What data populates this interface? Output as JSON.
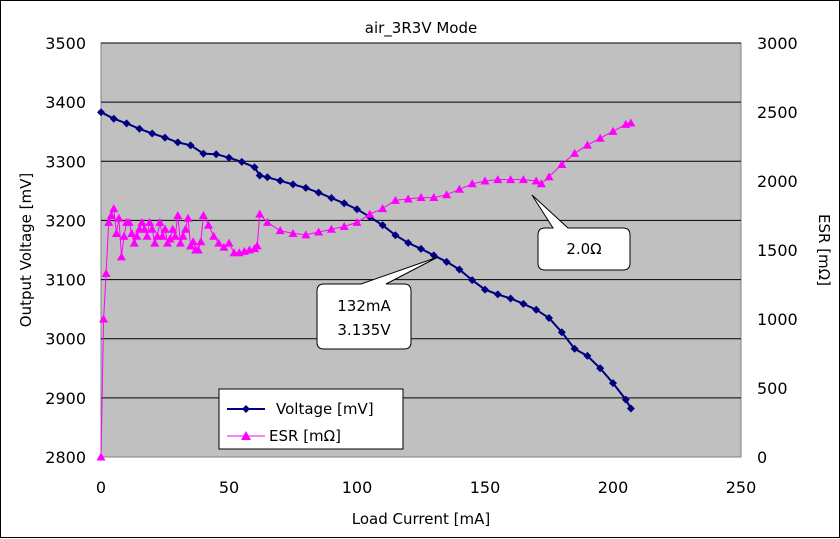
{
  "chart_data": {
    "type": "line",
    "title": "air_3R3V Mode",
    "xlabel": "Load Current [mA]",
    "ylabel_left": "Output Voltage [mV]",
    "ylabel_right": "ESR [mΩ]",
    "xlim": [
      0,
      250
    ],
    "ylim_left": [
      2800,
      3500
    ],
    "ylim_right": [
      0,
      3000
    ],
    "x_ticks": [
      "0",
      "50",
      "100",
      "150",
      "200",
      "250"
    ],
    "y_left_ticks": [
      "2800",
      "2900",
      "3000",
      "3100",
      "3200",
      "3300",
      "3400",
      "3500"
    ],
    "y_right_ticks": [
      "0",
      "500",
      "1000",
      "1500",
      "2000",
      "2500",
      "3000"
    ],
    "grid": "horizontal",
    "plot_background": "#c0c0c0",
    "legend_position": "bottom-left",
    "series": [
      {
        "name": "Voltage [mV]",
        "axis": "left",
        "color": "#000080",
        "marker": "diamond",
        "x": [
          0,
          5,
          10,
          15,
          20,
          25,
          30,
          35,
          40,
          45,
          50,
          55,
          60,
          62,
          65,
          70,
          75,
          80,
          85,
          90,
          95,
          100,
          105,
          110,
          115,
          120,
          125,
          130,
          135,
          140,
          145,
          150,
          155,
          160,
          165,
          170,
          175,
          180,
          185,
          190,
          195,
          200,
          205,
          207
        ],
        "values": [
          3383,
          3372,
          3364,
          3355,
          3347,
          3340,
          3332,
          3327,
          3313,
          3312,
          3306,
          3299,
          3290,
          3276,
          3273,
          3267,
          3261,
          3255,
          3247,
          3238,
          3229,
          3219,
          3206,
          3192,
          3175,
          3162,
          3152,
          3141,
          3130,
          3117,
          3099,
          3083,
          3075,
          3068,
          3059,
          3049,
          3035,
          3011,
          2983,
          2971,
          2950,
          2925,
          2897,
          2882
        ]
      },
      {
        "name": "ESR [mΩ]",
        "axis": "right",
        "color": "#ff00ff",
        "marker": "triangle",
        "x": [
          0,
          1,
          2,
          3,
          4,
          5,
          6,
          7,
          8,
          9,
          10,
          11,
          12,
          13,
          14,
          15,
          16,
          17,
          18,
          19,
          20,
          21,
          22,
          23,
          24,
          25,
          26,
          27,
          28,
          29,
          30,
          31,
          32,
          33,
          34,
          35,
          36,
          37,
          38,
          39,
          40,
          42,
          44,
          46,
          48,
          50,
          52,
          54,
          56,
          58,
          60,
          61,
          62,
          65,
          70,
          75,
          80,
          85,
          90,
          95,
          100,
          105,
          110,
          115,
          120,
          125,
          130,
          135,
          140,
          145,
          150,
          155,
          160,
          165,
          170,
          172,
          175,
          180,
          185,
          190,
          195,
          200,
          205,
          207
        ],
        "values": [
          0,
          1000,
          1330,
          1700,
          1750,
          1800,
          1620,
          1730,
          1450,
          1600,
          1700,
          1700,
          1620,
          1550,
          1600,
          1650,
          1700,
          1650,
          1600,
          1700,
          1650,
          1550,
          1600,
          1700,
          1600,
          1650,
          1550,
          1580,
          1650,
          1600,
          1750,
          1550,
          1600,
          1650,
          1730,
          1530,
          1560,
          1500,
          1500,
          1560,
          1750,
          1680,
          1600,
          1550,
          1520,
          1550,
          1480,
          1480,
          1490,
          1500,
          1510,
          1530,
          1760,
          1700,
          1640,
          1620,
          1610,
          1630,
          1650,
          1670,
          1700,
          1760,
          1800,
          1860,
          1870,
          1880,
          1880,
          1900,
          1940,
          1980,
          2000,
          2010,
          2010,
          2010,
          2000,
          1980,
          2030,
          2120,
          2200,
          2260,
          2310,
          2360,
          2410,
          2420
        ]
      }
    ],
    "annotations": [
      {
        "lines": [
          "132mA",
          "3.135V"
        ]
      },
      {
        "lines": [
          "2.0Ω"
        ]
      }
    ]
  }
}
